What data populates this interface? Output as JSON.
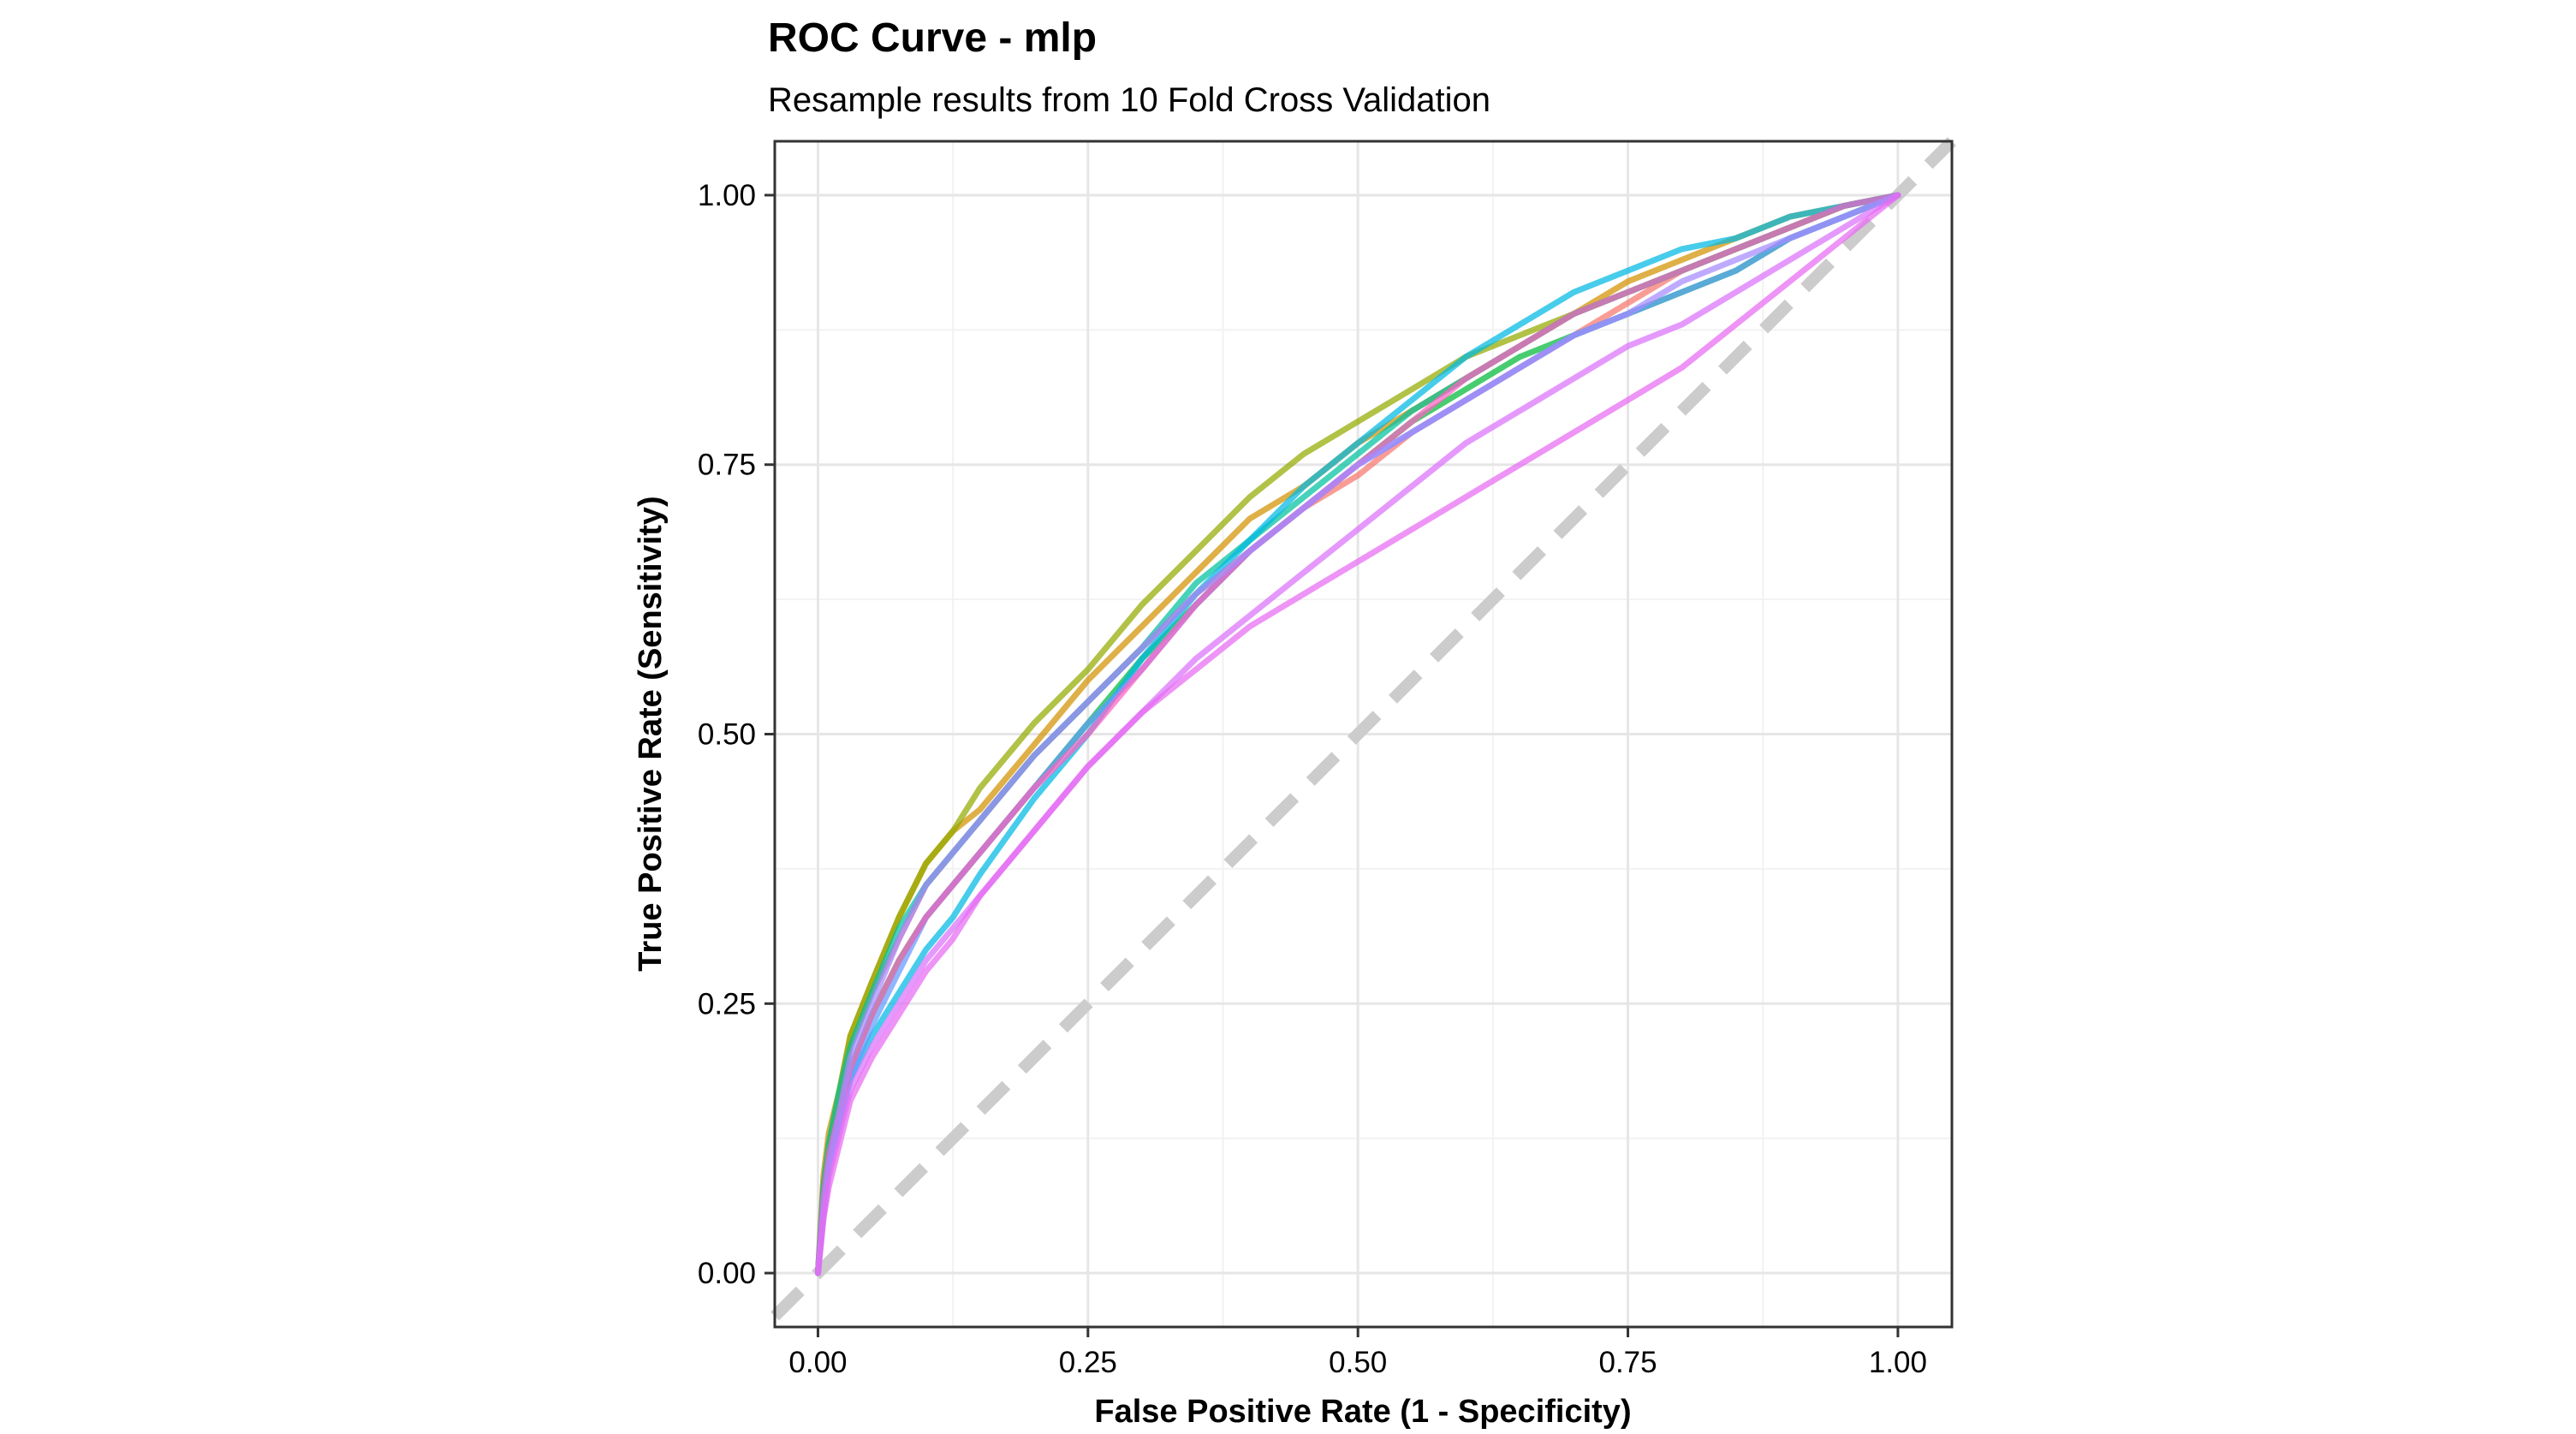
{
  "chart_data": {
    "type": "line",
    "title": "ROC Curve - mlp",
    "subtitle": "Resample results from 10 Fold Cross Validation",
    "xlabel": "False Positive Rate (1 - Specificity)",
    "ylabel": "True Positive Rate (Sensitivity)",
    "xlim": [
      -0.04,
      1.05
    ],
    "ylim": [
      -0.05,
      1.05
    ],
    "x_ticks": [
      "0.00",
      "0.25",
      "0.50",
      "0.75",
      "1.00"
    ],
    "y_ticks": [
      "0.00",
      "0.25",
      "0.50",
      "0.75",
      "1.00"
    ],
    "grid": true,
    "legend": "none",
    "reference_line": {
      "x": [
        0,
        1
      ],
      "y": [
        0,
        1
      ],
      "color": "#cccccc",
      "style": "dashed"
    },
    "series": [
      {
        "color": "#F8766D",
        "x": [
          0,
          0.005,
          0.01,
          0.02,
          0.03,
          0.05,
          0.075,
          0.1,
          0.125,
          0.15,
          0.2,
          0.25,
          0.3,
          0.35,
          0.4,
          0.45,
          0.5,
          0.55,
          0.6,
          0.65,
          0.7,
          0.75,
          0.8,
          0.85,
          0.9,
          0.95,
          1
        ],
        "y": [
          0,
          0.08,
          0.12,
          0.16,
          0.21,
          0.26,
          0.31,
          0.36,
          0.39,
          0.42,
          0.48,
          0.53,
          0.58,
          0.63,
          0.67,
          0.71,
          0.74,
          0.78,
          0.81,
          0.84,
          0.87,
          0.9,
          0.93,
          0.95,
          0.97,
          0.99,
          1
        ]
      },
      {
        "color": "#D39200",
        "x": [
          0,
          0.005,
          0.01,
          0.02,
          0.03,
          0.05,
          0.075,
          0.1,
          0.125,
          0.15,
          0.2,
          0.25,
          0.3,
          0.35,
          0.4,
          0.45,
          0.5,
          0.55,
          0.6,
          0.65,
          0.7,
          0.75,
          0.8,
          0.85,
          0.9,
          0.95,
          1
        ],
        "y": [
          0,
          0.09,
          0.13,
          0.17,
          0.22,
          0.27,
          0.33,
          0.38,
          0.41,
          0.43,
          0.49,
          0.55,
          0.6,
          0.65,
          0.7,
          0.73,
          0.77,
          0.8,
          0.83,
          0.86,
          0.89,
          0.92,
          0.94,
          0.96,
          0.98,
          0.99,
          1
        ]
      },
      {
        "color": "#93AA00",
        "x": [
          0,
          0.005,
          0.01,
          0.02,
          0.03,
          0.05,
          0.075,
          0.1,
          0.125,
          0.15,
          0.2,
          0.25,
          0.3,
          0.35,
          0.4,
          0.45,
          0.5,
          0.55,
          0.6,
          0.65,
          0.7,
          0.75,
          0.8,
          0.85,
          0.9,
          0.95,
          1
        ],
        "y": [
          0,
          0.08,
          0.12,
          0.17,
          0.22,
          0.27,
          0.33,
          0.38,
          0.41,
          0.45,
          0.51,
          0.56,
          0.62,
          0.67,
          0.72,
          0.76,
          0.79,
          0.82,
          0.85,
          0.87,
          0.89,
          0.91,
          0.93,
          0.95,
          0.97,
          0.99,
          1
        ]
      },
      {
        "color": "#00BA38",
        "x": [
          0,
          0.005,
          0.01,
          0.02,
          0.03,
          0.05,
          0.075,
          0.1,
          0.125,
          0.15,
          0.2,
          0.25,
          0.3,
          0.35,
          0.4,
          0.45,
          0.5,
          0.55,
          0.6,
          0.65,
          0.7,
          0.75,
          0.8,
          0.85,
          0.9,
          0.95,
          1
        ],
        "y": [
          0,
          0.07,
          0.11,
          0.15,
          0.19,
          0.24,
          0.29,
          0.33,
          0.36,
          0.39,
          0.45,
          0.51,
          0.57,
          0.62,
          0.67,
          0.71,
          0.75,
          0.79,
          0.82,
          0.85,
          0.87,
          0.89,
          0.91,
          0.93,
          0.96,
          0.98,
          1
        ]
      },
      {
        "color": "#00C19F",
        "x": [
          0,
          0.005,
          0.01,
          0.02,
          0.03,
          0.05,
          0.075,
          0.1,
          0.125,
          0.15,
          0.2,
          0.25,
          0.3,
          0.35,
          0.4,
          0.45,
          0.5,
          0.55,
          0.6,
          0.65,
          0.7,
          0.75,
          0.8,
          0.85,
          0.9,
          0.95,
          1
        ],
        "y": [
          0,
          0.08,
          0.12,
          0.17,
          0.21,
          0.26,
          0.32,
          0.36,
          0.39,
          0.42,
          0.48,
          0.53,
          0.58,
          0.64,
          0.68,
          0.72,
          0.76,
          0.8,
          0.83,
          0.86,
          0.89,
          0.91,
          0.93,
          0.95,
          0.97,
          0.99,
          1
        ]
      },
      {
        "color": "#00B9E3",
        "x": [
          0,
          0.005,
          0.01,
          0.02,
          0.03,
          0.05,
          0.075,
          0.1,
          0.125,
          0.15,
          0.2,
          0.25,
          0.3,
          0.35,
          0.4,
          0.45,
          0.5,
          0.55,
          0.6,
          0.65,
          0.7,
          0.75,
          0.8,
          0.85,
          0.9,
          0.95,
          1
        ],
        "y": [
          0,
          0.06,
          0.1,
          0.14,
          0.18,
          0.22,
          0.26,
          0.3,
          0.33,
          0.37,
          0.44,
          0.5,
          0.57,
          0.63,
          0.68,
          0.73,
          0.77,
          0.81,
          0.85,
          0.88,
          0.91,
          0.93,
          0.95,
          0.96,
          0.98,
          0.99,
          1
        ]
      },
      {
        "color": "#619CFF",
        "x": [
          0,
          0.005,
          0.01,
          0.02,
          0.03,
          0.05,
          0.075,
          0.1,
          0.125,
          0.15,
          0.2,
          0.25,
          0.3,
          0.35,
          0.4,
          0.45,
          0.5,
          0.55,
          0.6,
          0.65,
          0.7,
          0.75,
          0.8,
          0.85,
          0.9,
          0.95,
          1
        ],
        "y": [
          0,
          0.06,
          0.1,
          0.14,
          0.18,
          0.23,
          0.28,
          0.33,
          0.36,
          0.39,
          0.45,
          0.51,
          0.56,
          0.62,
          0.67,
          0.71,
          0.75,
          0.78,
          0.81,
          0.84,
          0.87,
          0.89,
          0.91,
          0.93,
          0.96,
          0.98,
          1
        ]
      },
      {
        "color": "#DB72FB",
        "x": [
          0,
          0.005,
          0.01,
          0.02,
          0.03,
          0.05,
          0.075,
          0.1,
          0.125,
          0.15,
          0.2,
          0.25,
          0.3,
          0.35,
          0.4,
          0.45,
          0.5,
          0.55,
          0.6,
          0.65,
          0.7,
          0.75,
          0.8,
          0.85,
          0.9,
          0.95,
          1
        ],
        "y": [
          0,
          0.05,
          0.09,
          0.13,
          0.17,
          0.21,
          0.25,
          0.29,
          0.32,
          0.35,
          0.41,
          0.47,
          0.52,
          0.57,
          0.61,
          0.65,
          0.69,
          0.73,
          0.77,
          0.8,
          0.83,
          0.86,
          0.88,
          0.91,
          0.94,
          0.97,
          1
        ]
      },
      {
        "color": "#FF61C3",
        "x": [
          0,
          0.005,
          0.01,
          0.02,
          0.03,
          0.05,
          0.075,
          0.1,
          0.125,
          0.15,
          0.2,
          0.25,
          0.3,
          0.35,
          0.4,
          0.45,
          0.5,
          0.55,
          0.6,
          0.65,
          0.7,
          0.75,
          0.8,
          0.85,
          0.9,
          0.95,
          1
        ],
        "y": [
          0,
          0.07,
          0.11,
          0.15,
          0.19,
          0.24,
          0.29,
          0.33,
          0.36,
          0.39,
          0.45,
          0.5,
          0.56,
          0.62,
          0.67,
          0.71,
          0.75,
          0.79,
          0.83,
          0.86,
          0.89,
          0.91,
          0.93,
          0.95,
          0.97,
          0.99,
          1
        ]
      },
      {
        "color": "#A58AFF",
        "x": [
          0,
          0.005,
          0.01,
          0.02,
          0.03,
          0.05,
          0.075,
          0.1,
          0.125,
          0.15,
          0.2,
          0.25,
          0.3,
          0.35,
          0.4,
          0.45,
          0.5,
          0.55,
          0.6,
          0.65,
          0.7,
          0.75,
          0.8,
          0.85,
          0.9,
          0.95,
          1
        ],
        "y": [
          0,
          0.06,
          0.1,
          0.15,
          0.2,
          0.25,
          0.31,
          0.36,
          0.39,
          0.42,
          0.48,
          0.53,
          0.58,
          0.63,
          0.67,
          0.71,
          0.75,
          0.78,
          0.81,
          0.84,
          0.87,
          0.89,
          0.92,
          0.94,
          0.96,
          0.98,
          1
        ]
      },
      {
        "color": "#E76BF3",
        "x": [
          0,
          0.005,
          0.01,
          0.02,
          0.03,
          0.05,
          0.075,
          0.1,
          0.125,
          0.15,
          0.2,
          0.25,
          0.3,
          0.35,
          0.4,
          0.45,
          0.5,
          0.55,
          0.6,
          0.65,
          0.7,
          0.75,
          0.8,
          0.85,
          0.9,
          0.95,
          1
        ],
        "y": [
          0,
          0.05,
          0.08,
          0.12,
          0.16,
          0.2,
          0.24,
          0.28,
          0.31,
          0.35,
          0.41,
          0.47,
          0.52,
          0.56,
          0.6,
          0.63,
          0.66,
          0.69,
          0.72,
          0.75,
          0.78,
          0.81,
          0.84,
          0.88,
          0.92,
          0.96,
          1
        ]
      }
    ]
  }
}
